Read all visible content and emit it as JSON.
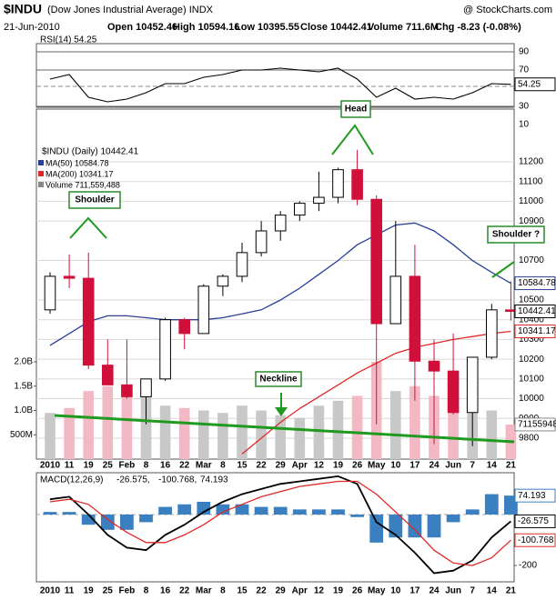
{
  "header": {
    "symbol": "$INDU",
    "name": "(Dow Jones Industrial Average) INDX",
    "source": "@ StockCharts.com",
    "date": "21-Jun-2010",
    "open": "Open 10452.46",
    "high": "High 10594.16",
    "low": "Low 10395.55",
    "close": "Close 10442.41",
    "volume": "Volume 711.6M",
    "change": "Chg -8.23 (-0.08%)"
  },
  "chart_data": [
    {
      "type": "candlestick",
      "title": "$INDU (Daily) 10442.41",
      "categories": [
        "2010",
        "11",
        "19",
        "25",
        "Feb",
        "8",
        "16",
        "22",
        "Mar",
        "8",
        "15",
        "22",
        "29",
        "Apr",
        "12",
        "19",
        "26",
        "May",
        "10",
        "17",
        "24",
        "Jun",
        "7",
        "14",
        "21"
      ],
      "open": [
        10450,
        10620,
        10610,
        10170,
        10070,
        10010,
        10100,
        10400,
        10330,
        10570,
        10620,
        10740,
        10850,
        10930,
        10990,
        11020,
        11160,
        11010,
        10380,
        10620,
        10190,
        10140,
        9930,
        10210,
        10450
      ],
      "high": [
        10640,
        10730,
        10740,
        10300,
        10300,
        10100,
        10410,
        10410,
        10580,
        10630,
        10790,
        10900,
        10950,
        11000,
        11150,
        11170,
        11260,
        11030,
        10900,
        10780,
        10300,
        10330,
        10200,
        10480,
        10594
      ],
      "low": [
        10430,
        10560,
        10150,
        10080,
        10000,
        9870,
        10090,
        10250,
        10330,
        10520,
        10590,
        10720,
        10800,
        10900,
        10950,
        10990,
        10980,
        9870,
        10380,
        9990,
        9770,
        9920,
        9760,
        10200,
        10396
      ],
      "close": [
        10620,
        10610,
        10170,
        10070,
        10010,
        10100,
        10400,
        10330,
        10570,
        10620,
        10740,
        10850,
        10930,
        10990,
        11020,
        11160,
        11010,
        10380,
        10620,
        10190,
        10140,
        9930,
        10210,
        10450,
        10442.41
      ],
      "up_color": "#000000",
      "down_color": "#d0103a",
      "series": [
        {
          "name": "MA(50) 10584.78",
          "color": "#2a3f9a",
          "label": "10584.78",
          "values": [
            10270,
            10330,
            10390,
            10420,
            10420,
            10410,
            10400,
            10400,
            10400,
            10410,
            10430,
            10450,
            10500,
            10560,
            10630,
            10700,
            10780,
            10830,
            10880,
            10890,
            10850,
            10780,
            10700,
            10640,
            10584.78
          ]
        },
        {
          "name": "MA(200) 10341.17",
          "color": "#e02828",
          "label": "10341.17",
          "values": [
            null,
            null,
            null,
            null,
            null,
            null,
            null,
            null,
            null,
            null,
            9720,
            9800,
            9880,
            9950,
            10010,
            10070,
            10130,
            10180,
            10230,
            10260,
            10280,
            10300,
            10315,
            10330,
            10341.17
          ]
        }
      ],
      "close_label": "10442.41",
      "ylim": [
        9694,
        11467
      ],
      "yticks": [
        9800,
        9900,
        10000,
        10100,
        10200,
        10300,
        10400,
        10500,
        10700,
        10900,
        11000,
        11100,
        11200
      ],
      "grid": true,
      "volume": {
        "name": "Volume 711,559,488",
        "label": "711559488",
        "up_color": "#c8c8c8",
        "down_color": "#f2b8c4",
        "values": [
          950000000,
          1050000000,
          1400000000,
          1500000000,
          1450000000,
          1300000000,
          1100000000,
          1050000000,
          1000000000,
          950000000,
          1100000000,
          1000000000,
          900000000,
          850000000,
          1100000000,
          1200000000,
          1300000000,
          2000000000,
          1400000000,
          1500000000,
          1300000000,
          1200000000,
          1250000000,
          1000000000,
          711559488
        ],
        "ylim": [
          0,
          7200000000
        ],
        "yticks": [
          {
            "value": 500000000,
            "label": "500M"
          },
          {
            "value": 1000000000,
            "label": "1.0B"
          },
          {
            "value": 1500000000,
            "label": "1.5B"
          },
          {
            "value": 2000000000,
            "label": "2.0B"
          }
        ]
      },
      "annotations": [
        "Head",
        "Shoulder",
        "Shoulder ?",
        "Neckline"
      ]
    },
    {
      "type": "line",
      "title": "RSI(14) 54.25",
      "color": "#000000",
      "label": "54.25",
      "values": [
        60,
        65,
        40,
        35,
        38,
        45,
        55,
        55,
        62,
        65,
        70,
        70,
        72,
        70,
        68,
        72,
        60,
        40,
        50,
        38,
        40,
        38,
        45,
        55,
        54.25
      ],
      "ylim": [
        10,
        90
      ],
      "yticks": [
        10,
        30,
        70,
        90
      ]
    },
    {
      "type": "macd",
      "title": "MACD(12,26,9)",
      "categories": [
        "2010",
        "11",
        "19",
        "25",
        "Feb",
        "8",
        "16",
        "22",
        "Mar",
        "8",
        "15",
        "22",
        "29",
        "Apr",
        "12",
        "19",
        "26",
        "May",
        "10",
        "17",
        "24",
        "Jun",
        "7",
        "14",
        "21"
      ],
      "series": [
        {
          "legend": "-26.575,",
          "label": "-26.575",
          "color": "#000000",
          "values": [
            60,
            70,
            0,
            -80,
            -130,
            -140,
            -80,
            -40,
            10,
            50,
            80,
            100,
            120,
            130,
            140,
            150,
            120,
            -30,
            -80,
            -150,
            -230,
            -220,
            -180,
            -90,
            -26.575
          ]
        },
        {
          "legend": "-100.768,",
          "label": "-100.768",
          "color": "#e02828",
          "values": [
            50,
            60,
            40,
            -20,
            -70,
            -110,
            -110,
            -80,
            -40,
            10,
            40,
            70,
            90,
            110,
            120,
            130,
            130,
            80,
            10,
            -60,
            -140,
            -190,
            -200,
            -170,
            -100.768
          ]
        }
      ],
      "histogram": {
        "legend": "74.193",
        "label": "74.193",
        "color": "#3a7fc0",
        "values": [
          10,
          10,
          -40,
          -60,
          -60,
          -30,
          30,
          40,
          50,
          40,
          40,
          30,
          30,
          20,
          20,
          20,
          -10,
          -110,
          -90,
          -90,
          -90,
          -30,
          20,
          80,
          74.193
        ]
      },
      "ylim": [
        -264,
        164
      ],
      "yticks": [
        -200
      ]
    }
  ]
}
